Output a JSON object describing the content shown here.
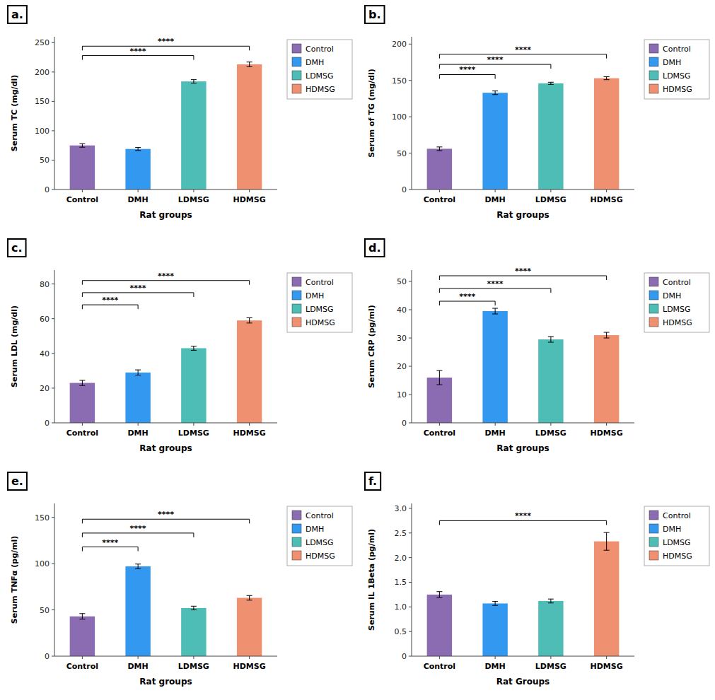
{
  "chart_data": [
    {
      "type": "bar",
      "title": "a.",
      "ylabel": "Serum TC (mg/dl)",
      "xlabel": "Rat groups",
      "categories": [
        "Control",
        "DMH",
        "LDMSG",
        "HDMSG"
      ],
      "values": [
        75,
        69,
        184,
        213
      ],
      "errors": [
        3,
        2.5,
        3,
        4
      ],
      "colors": [
        "#8B6BB1",
        "#3399F0",
        "#4DBDB5",
        "#EF9070"
      ],
      "ylim": [
        0,
        260
      ],
      "yticks": [
        0,
        50,
        100,
        150,
        200,
        250
      ],
      "grid": false,
      "legend": "right",
      "legend_labels": [
        "Control",
        "DMH",
        "LDMSG",
        "HDMSG"
      ],
      "legend_colors": [
        "#8B6BB1",
        "#3399F0",
        "#4DBDB5",
        "#EF9070"
      ],
      "annotations": [
        {
          "text": "****",
          "from": "Control",
          "to": "LDMSG",
          "y": 228
        },
        {
          "text": "****",
          "from": "Control",
          "to": "HDMSG",
          "y": 244
        }
      ]
    },
    {
      "type": "bar",
      "title": "b.",
      "ylabel": "Serum of TG (mg/dl)",
      "xlabel": "Rat groups",
      "categories": [
        "Control",
        "DMH",
        "LDMSG",
        "HDMSG"
      ],
      "values": [
        56,
        133,
        146,
        153
      ],
      "errors": [
        2.5,
        2.5,
        1.5,
        2
      ],
      "colors": [
        "#8B6BB1",
        "#3399F0",
        "#4DBDB5",
        "#EF9070"
      ],
      "ylim": [
        0,
        210
      ],
      "yticks": [
        0,
        50,
        100,
        150,
        200
      ],
      "grid": false,
      "legend": "right",
      "legend_labels": [
        "Control",
        "DMH",
        "LDMSG",
        "HDMSG"
      ],
      "legend_colors": [
        "#8B6BB1",
        "#3399F0",
        "#4DBDB5",
        "#EF9070"
      ],
      "annotations": [
        {
          "text": "****",
          "from": "Control",
          "to": "DMH",
          "y": 158
        },
        {
          "text": "****",
          "from": "Control",
          "to": "LDMSG",
          "y": 172
        },
        {
          "text": "****",
          "from": "Control",
          "to": "HDMSG",
          "y": 186
        }
      ]
    },
    {
      "type": "bar",
      "title": "c.",
      "ylabel": "Serum LDL (mg/dl)",
      "xlabel": "Rat groups",
      "categories": [
        "Control",
        "DMH",
        "LDMSG",
        "HDMSG"
      ],
      "values": [
        23,
        29,
        43,
        59
      ],
      "errors": [
        1.5,
        1.5,
        1.2,
        1.5
      ],
      "colors": [
        "#8B6BB1",
        "#3399F0",
        "#4DBDB5",
        "#EF9070"
      ],
      "ylim": [
        0,
        88
      ],
      "yticks": [
        0,
        20,
        40,
        60,
        80
      ],
      "grid": false,
      "legend": "right",
      "legend_labels": [
        "Control",
        "DMH",
        "LDMSG",
        "HDMSG"
      ],
      "legend_colors": [
        "#8B6BB1",
        "#3399F0",
        "#4DBDB5",
        "#EF9070"
      ],
      "annotations": [
        {
          "text": "****",
          "from": "Control",
          "to": "DMH",
          "y": 68
        },
        {
          "text": "****",
          "from": "Control",
          "to": "LDMSG",
          "y": 75
        },
        {
          "text": "****",
          "from": "Control",
          "to": "HDMSG",
          "y": 82
        }
      ]
    },
    {
      "type": "bar",
      "title": "d.",
      "ylabel": "Serum CRP (pg/ml)",
      "xlabel": "Rat groups",
      "categories": [
        "Control",
        "DMH",
        "LDMSG",
        "HDMSG"
      ],
      "values": [
        16,
        39.5,
        29.5,
        31
      ],
      "errors": [
        2.5,
        1.0,
        1.0,
        1.0
      ],
      "colors": [
        "#8B6BB1",
        "#3399F0",
        "#4DBDB5",
        "#EF9070"
      ],
      "ylim": [
        0,
        54
      ],
      "yticks": [
        0,
        10,
        20,
        30,
        40,
        50
      ],
      "grid": false,
      "legend": "right",
      "legend_labels": [
        "Control",
        "DMH",
        "LDMSG",
        "HDMSG"
      ],
      "legend_colors": [
        "#8B6BB1",
        "#3399F0",
        "#4DBDB5",
        "#EF9070"
      ],
      "annotations": [
        {
          "text": "****",
          "from": "Control",
          "to": "DMH",
          "y": 43
        },
        {
          "text": "****",
          "from": "Control",
          "to": "LDMSG",
          "y": 47.5
        },
        {
          "text": "****",
          "from": "Control",
          "to": "HDMSG",
          "y": 52
        }
      ]
    },
    {
      "type": "bar",
      "title": "e.",
      "ylabel": "Serum TNFα (pg/ml)",
      "xlabel": "Rat groups",
      "categories": [
        "Control",
        "DMH",
        "LDMSG",
        "HDMSG"
      ],
      "values": [
        43,
        97,
        52,
        63
      ],
      "errors": [
        3,
        2.5,
        2,
        2.5
      ],
      "colors": [
        "#8B6BB1",
        "#3399F0",
        "#4DBDB5",
        "#EF9070"
      ],
      "ylim": [
        0,
        165
      ],
      "yticks": [
        0,
        50,
        100,
        150
      ],
      "grid": false,
      "legend": "right",
      "legend_labels": [
        "Control",
        "DMH",
        "LDMSG",
        "HDMSG"
      ],
      "legend_colors": [
        "#8B6BB1",
        "#3399F0",
        "#4DBDB5",
        "#EF9070"
      ],
      "annotations": [
        {
          "text": "****",
          "from": "Control",
          "to": "DMH",
          "y": 118
        },
        {
          "text": "****",
          "from": "Control",
          "to": "LDMSG",
          "y": 133
        },
        {
          "text": "****",
          "from": "Control",
          "to": "HDMSG",
          "y": 148
        }
      ]
    },
    {
      "type": "bar",
      "title": "f.",
      "ylabel": "Serum IL 1Beta (pg/ml)",
      "xlabel": "Rat Groups",
      "categories": [
        "Control",
        "DMH",
        "LDMSG",
        "HDMSG"
      ],
      "values": [
        1.25,
        1.07,
        1.12,
        2.33
      ],
      "errors": [
        0.06,
        0.04,
        0.04,
        0.18
      ],
      "colors": [
        "#8B6BB1",
        "#3399F0",
        "#4DBDB5",
        "#EF9070"
      ],
      "ylim": [
        0,
        3.1
      ],
      "yticks": [
        0,
        0.5,
        {
          "value": 1.0,
          "label": "1.0"
        },
        1.5,
        {
          "value": 2.0,
          "label": "2.0"
        },
        2.5,
        {
          "value": 3.0,
          "label": "3.0"
        }
      ],
      "grid": false,
      "legend": "right",
      "legend_labels": [
        "Control",
        "DMH",
        "LDMSG",
        "HDMSG"
      ],
      "legend_colors": [
        "#8B6BB1",
        "#3399F0",
        "#4DBDB5",
        "#EF9070"
      ],
      "annotations": [
        {
          "text": "****",
          "from": "Control",
          "to": "HDMSG",
          "y": 2.75
        }
      ]
    }
  ]
}
